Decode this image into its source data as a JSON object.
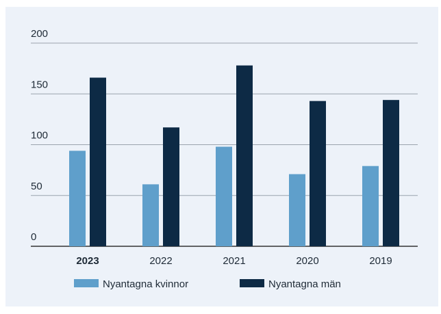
{
  "chart_data": {
    "type": "bar",
    "categories": [
      "2023",
      "2022",
      "2021",
      "2020",
      "2019"
    ],
    "series": [
      {
        "name": "Nyantagna kvinnor",
        "color": "#5f9fcb",
        "values": [
          94,
          61,
          98,
          71,
          79
        ]
      },
      {
        "name": "Nyantagna män",
        "color": "#0d2a45",
        "values": [
          166,
          117,
          178,
          143,
          144
        ]
      }
    ],
    "ylim": [
      0,
      200
    ],
    "yticks": [
      0,
      50,
      100,
      150,
      200
    ],
    "grid": true,
    "legend": "bottom"
  }
}
